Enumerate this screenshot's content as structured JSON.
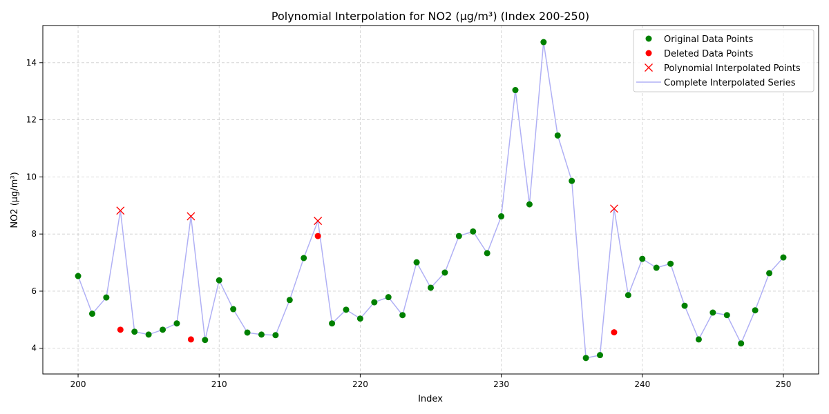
{
  "chart_data": {
    "type": "line",
    "title": "Polynomial Interpolation for NO2 (µg/m³) (Index 200-250)",
    "xlabel": "Index",
    "ylabel": "NO2 (µg/m³)",
    "xlim": [
      197.5,
      252.5
    ],
    "ylim": [
      3.1,
      15.3
    ],
    "xticks": [
      200,
      210,
      220,
      230,
      240,
      250
    ],
    "yticks": [
      4,
      6,
      8,
      10,
      12,
      14
    ],
    "grid": true,
    "legend_position": "top-right",
    "series": [
      {
        "name": "Original Data Points",
        "kind": "marker",
        "marker": "circle",
        "color": "#008000",
        "points": [
          [
            200,
            6.53
          ],
          [
            201,
            5.21
          ],
          [
            202,
            5.78
          ],
          [
            204,
            4.58
          ],
          [
            205,
            4.48
          ],
          [
            206,
            4.65
          ],
          [
            207,
            4.87
          ],
          [
            209,
            4.29
          ],
          [
            210,
            6.38
          ],
          [
            211,
            5.37
          ],
          [
            212,
            4.55
          ],
          [
            213,
            4.48
          ],
          [
            214,
            4.46
          ],
          [
            215,
            5.69
          ],
          [
            216,
            7.16
          ],
          [
            218,
            4.87
          ],
          [
            219,
            5.35
          ],
          [
            220,
            5.04
          ],
          [
            221,
            5.61
          ],
          [
            222,
            5.79
          ],
          [
            223,
            5.16
          ],
          [
            224,
            7.01
          ],
          [
            225,
            6.12
          ],
          [
            226,
            6.65
          ],
          [
            227,
            7.93
          ],
          [
            228,
            8.09
          ],
          [
            229,
            7.33
          ],
          [
            230,
            8.62
          ],
          [
            231,
            13.04
          ],
          [
            232,
            9.04
          ],
          [
            233,
            14.72
          ],
          [
            234,
            11.45
          ],
          [
            235,
            9.86
          ],
          [
            236,
            3.66
          ],
          [
            237,
            3.76
          ],
          [
            239,
            5.86
          ],
          [
            240,
            7.13
          ],
          [
            241,
            6.82
          ],
          [
            242,
            6.96
          ],
          [
            243,
            5.49
          ],
          [
            244,
            4.31
          ],
          [
            245,
            5.25
          ],
          [
            246,
            5.16
          ],
          [
            247,
            4.17
          ],
          [
            248,
            5.33
          ],
          [
            249,
            6.63
          ],
          [
            250,
            7.18
          ]
        ]
      },
      {
        "name": "Deleted Data Points",
        "kind": "marker",
        "marker": "circle",
        "color": "#ff0000",
        "points": [
          [
            203,
            4.65
          ],
          [
            208,
            4.31
          ],
          [
            217,
            7.93
          ],
          [
            238,
            4.56
          ]
        ]
      },
      {
        "name": "Polynomial Interpolated Points",
        "kind": "marker",
        "marker": "x",
        "color": "#ff0000",
        "points": [
          [
            203,
            8.82
          ],
          [
            208,
            8.62
          ],
          [
            217,
            8.46
          ],
          [
            238,
            8.89
          ]
        ]
      },
      {
        "name": "Complete Interpolated Series",
        "kind": "line",
        "color": "#b0b0f5",
        "points": [
          [
            200,
            6.53
          ],
          [
            201,
            5.21
          ],
          [
            202,
            5.78
          ],
          [
            203,
            8.82
          ],
          [
            204,
            4.58
          ],
          [
            205,
            4.48
          ],
          [
            206,
            4.65
          ],
          [
            207,
            4.87
          ],
          [
            208,
            8.62
          ],
          [
            209,
            4.29
          ],
          [
            210,
            6.38
          ],
          [
            211,
            5.37
          ],
          [
            212,
            4.55
          ],
          [
            213,
            4.48
          ],
          [
            214,
            4.46
          ],
          [
            215,
            5.69
          ],
          [
            216,
            7.16
          ],
          [
            217,
            8.46
          ],
          [
            218,
            4.87
          ],
          [
            219,
            5.35
          ],
          [
            220,
            5.04
          ],
          [
            221,
            5.61
          ],
          [
            222,
            5.79
          ],
          [
            223,
            5.16
          ],
          [
            224,
            7.01
          ],
          [
            225,
            6.12
          ],
          [
            226,
            6.65
          ],
          [
            227,
            7.93
          ],
          [
            228,
            8.09
          ],
          [
            229,
            7.33
          ],
          [
            230,
            8.62
          ],
          [
            231,
            13.04
          ],
          [
            232,
            9.04
          ],
          [
            233,
            14.72
          ],
          [
            234,
            11.45
          ],
          [
            235,
            9.86
          ],
          [
            236,
            3.66
          ],
          [
            237,
            3.76
          ],
          [
            238,
            8.89
          ],
          [
            239,
            5.86
          ],
          [
            240,
            7.13
          ],
          [
            241,
            6.82
          ],
          [
            242,
            6.96
          ],
          [
            243,
            5.49
          ],
          [
            244,
            4.31
          ],
          [
            245,
            5.25
          ],
          [
            246,
            5.16
          ],
          [
            247,
            4.17
          ],
          [
            248,
            5.33
          ],
          [
            249,
            6.63
          ],
          [
            250,
            7.18
          ]
        ]
      }
    ]
  }
}
